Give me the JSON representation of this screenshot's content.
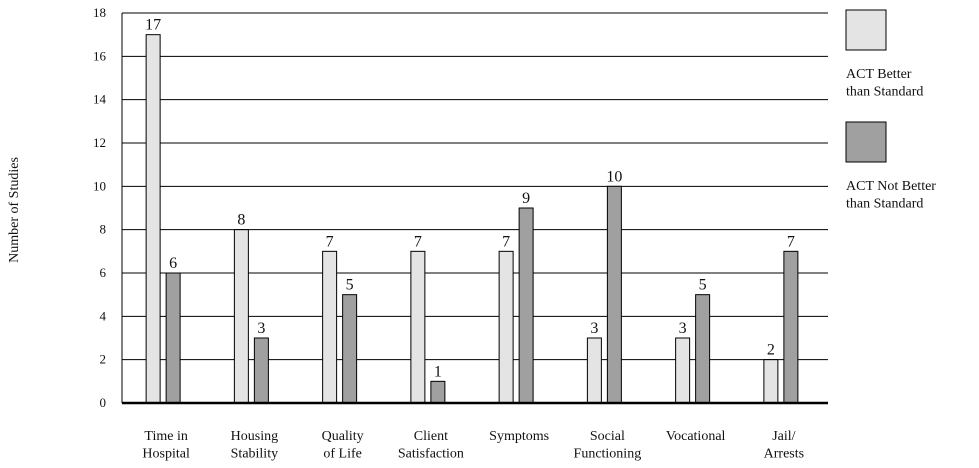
{
  "chart_data": {
    "type": "bar",
    "y_label": "Number of Studies",
    "categories": [
      "Time in\nHospital",
      "Housing\nStability",
      "Quality\nof Life",
      "Client\nSatisfaction",
      "Symptoms",
      "Social\nFunctioning",
      "Vocational",
      "Jail/\nArrests"
    ],
    "series": [
      {
        "name": "ACT Better\nthan Standard",
        "color": "#e4e4e4",
        "values": [
          17,
          8,
          7,
          7,
          7,
          3,
          3,
          2
        ]
      },
      {
        "name": "ACT Not Better\nthan Standard",
        "color": "#a0a0a0",
        "values": [
          6,
          3,
          5,
          1,
          9,
          10,
          5,
          7
        ]
      }
    ],
    "ylim": [
      0,
      18
    ],
    "yticks": [
      0,
      2,
      4,
      6,
      8,
      10,
      12,
      14,
      16,
      18
    ],
    "grid": true,
    "legend": "right"
  }
}
